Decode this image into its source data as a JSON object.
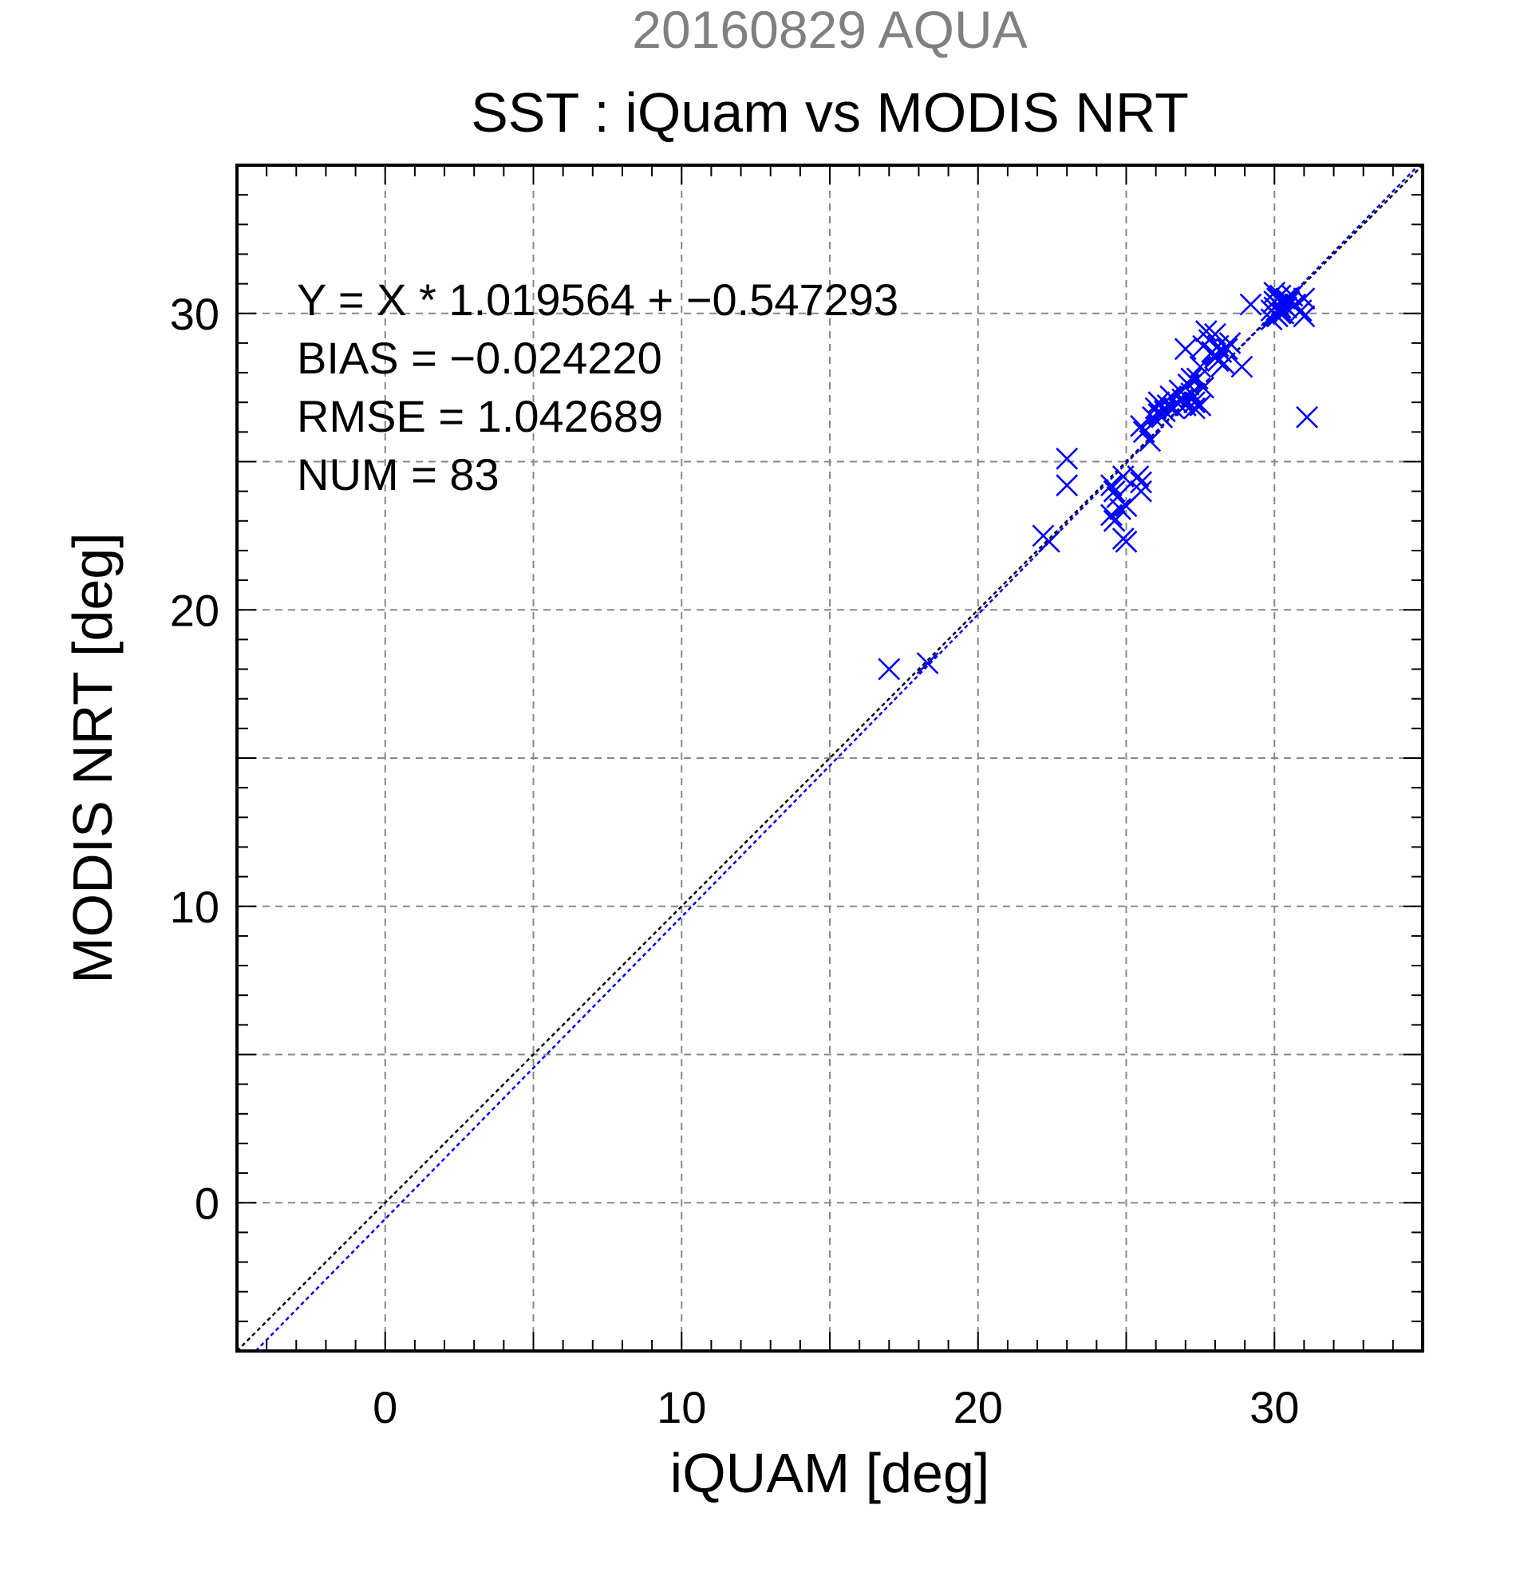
{
  "chart_data": {
    "type": "scatter",
    "date_label": "20160829 AQUA",
    "title": "SST : iQuam vs MODIS NRT",
    "xlabel": "iQUAM [deg]",
    "ylabel": "MODIS NRT [deg]",
    "xlim": [
      -5,
      35
    ],
    "ylim": [
      -5,
      35
    ],
    "xticks": [
      0,
      10,
      20,
      30
    ],
    "yticks": [
      0,
      10,
      20,
      30
    ],
    "grid": true,
    "stats": [
      "Y = X * 1.019564 + −0.547293",
      "BIAS = −0.024220",
      "RMSE = 1.042689",
      "NUM = 83"
    ],
    "fit": {
      "slope": 1.019564,
      "intercept": -0.547293
    },
    "series": [
      {
        "marker": "x",
        "color": "#0000ff",
        "points": [
          [
            17.0,
            18.0
          ],
          [
            18.3,
            18.2
          ],
          [
            22.2,
            22.5
          ],
          [
            22.4,
            22.3
          ],
          [
            23.0,
            25.1
          ],
          [
            23.0,
            24.2
          ],
          [
            24.5,
            24.2
          ],
          [
            24.6,
            24.0
          ],
          [
            24.7,
            23.8
          ],
          [
            24.5,
            23.2
          ],
          [
            24.6,
            23.0
          ],
          [
            24.8,
            23.4
          ],
          [
            24.9,
            22.4
          ],
          [
            25.0,
            22.3
          ],
          [
            24.9,
            24.5
          ],
          [
            25.0,
            23.5
          ],
          [
            25.4,
            24.5
          ],
          [
            25.5,
            24.3
          ],
          [
            25.5,
            24.0
          ],
          [
            25.6,
            26.0
          ],
          [
            25.5,
            26.2
          ],
          [
            25.8,
            25.7
          ],
          [
            25.9,
            26.5
          ],
          [
            26.0,
            26.8
          ],
          [
            26.1,
            27.0
          ],
          [
            26.2,
            26.5
          ],
          [
            26.3,
            26.7
          ],
          [
            26.4,
            26.9
          ],
          [
            26.5,
            27.2
          ],
          [
            26.6,
            26.8
          ],
          [
            26.7,
            27.0
          ],
          [
            26.8,
            27.4
          ],
          [
            26.9,
            27.1
          ],
          [
            27.0,
            26.9
          ],
          [
            27.0,
            28.8
          ],
          [
            27.1,
            27.6
          ],
          [
            27.2,
            27.3
          ],
          [
            27.3,
            27.0
          ],
          [
            27.3,
            26.8
          ],
          [
            27.4,
            27.8
          ],
          [
            27.5,
            28.2
          ],
          [
            27.5,
            26.9
          ],
          [
            27.6,
            27.5
          ],
          [
            27.6,
            28.9
          ],
          [
            27.7,
            29.4
          ],
          [
            27.8,
            29.1
          ],
          [
            27.9,
            28.7
          ],
          [
            28.0,
            29.3
          ],
          [
            28.0,
            28.5
          ],
          [
            28.1,
            28.9
          ],
          [
            28.1,
            28.4
          ],
          [
            28.2,
            28.7
          ],
          [
            28.3,
            28.3
          ],
          [
            28.4,
            28.8
          ],
          [
            28.5,
            29.0
          ],
          [
            28.9,
            28.2
          ],
          [
            29.2,
            30.3
          ],
          [
            29.9,
            30.1
          ],
          [
            29.9,
            29.8
          ],
          [
            30.0,
            30.7
          ],
          [
            30.0,
            30.4
          ],
          [
            30.0,
            30.0
          ],
          [
            30.1,
            30.3
          ],
          [
            30.1,
            30.5
          ],
          [
            30.1,
            29.9
          ],
          [
            30.2,
            30.2
          ],
          [
            30.2,
            30.6
          ],
          [
            30.3,
            30.3
          ],
          [
            30.3,
            30.0
          ],
          [
            30.4,
            30.5
          ],
          [
            30.4,
            30.2
          ],
          [
            30.5,
            30.4
          ],
          [
            30.6,
            30.6
          ],
          [
            30.7,
            30.3
          ],
          [
            30.9,
            30.1
          ],
          [
            31.0,
            29.9
          ],
          [
            31.0,
            30.5
          ],
          [
            31.1,
            26.5
          ],
          [
            30.0,
            30.2
          ],
          [
            30.2,
            30.0
          ],
          [
            28.0,
            28.6
          ],
          [
            27.2,
            27.8
          ],
          [
            26.1,
            26.6
          ]
        ]
      }
    ]
  }
}
